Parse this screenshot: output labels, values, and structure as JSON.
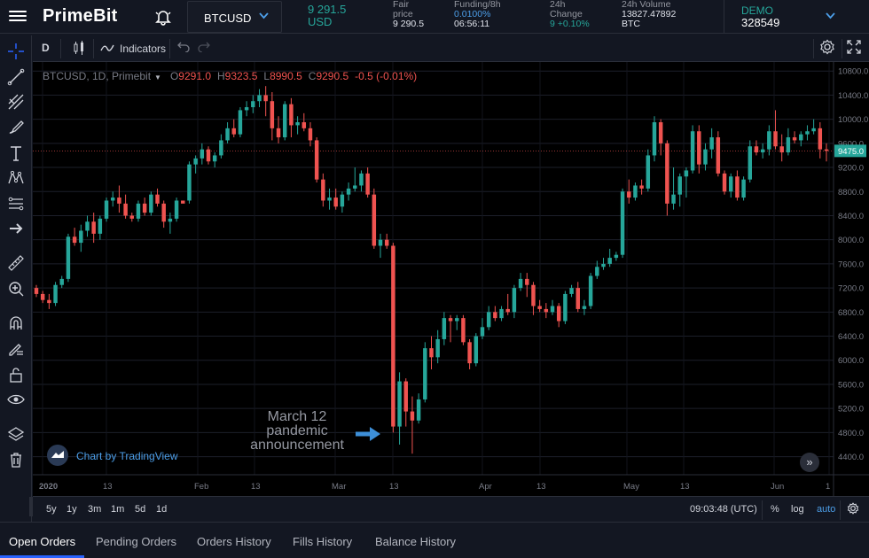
{
  "header": {
    "logo": "PrimeBit",
    "symbol": "BTCUSD",
    "last_price": "9 291.5",
    "last_currency": "USD",
    "fair_price_label_1": "Fair",
    "fair_price_label_2": "price",
    "fair_price_value": "9 290.5",
    "funding_label": "Funding/8h",
    "funding_rate": "0.0100%",
    "funding_countdown": "06:56:11",
    "change_label_1": "24h",
    "change_label_2": "Change",
    "change_value": "9 +0.10%",
    "volume_label": "24h Volume",
    "volume_value": "13827.47892",
    "volume_unit": "BTC",
    "account_mode": "DEMO",
    "account_id": "328549"
  },
  "chart_toolbar": {
    "interval": "D",
    "indicators_label": "Indicators"
  },
  "chart_legend": {
    "title": "BTCUSD, 1D, Primebit",
    "o_label": "O",
    "o_value": "9291.0",
    "h_label": "H",
    "h_value": "9323.5",
    "l_label": "L",
    "l_value": "8990.5",
    "c_label": "C",
    "c_value": "9290.5",
    "change": "-0.5 (-0.01%)"
  },
  "annotation": {
    "line1": "March 12",
    "line2": "pandemic",
    "line3": "announcement"
  },
  "watermark": "Chart by TradingView",
  "price_tag": "9475.0",
  "bottom": {
    "ranges": [
      "5y",
      "1y",
      "3m",
      "1m",
      "5d",
      "1d"
    ],
    "clock": "09:03:48 (UTC)",
    "percent": "%",
    "log": "log",
    "auto": "auto"
  },
  "tabs": [
    "Open Orders",
    "Pending Orders",
    "Orders History",
    "Fills History",
    "Balance History"
  ],
  "colors": {
    "up": "#26a69a",
    "down": "#ef5350",
    "accent": "#2962ff",
    "annotation": "#3d8fd8"
  },
  "chart_data": {
    "type": "candlestick",
    "y_ticks": [
      4400,
      4800,
      5200,
      5600,
      6000,
      6400,
      6800,
      7200,
      7600,
      8000,
      8400,
      8800,
      9200,
      9600,
      10000,
      10400,
      10800
    ],
    "x_ticks": [
      "2020",
      "13",
      "Feb",
      "13",
      "Mar",
      "13",
      "Apr",
      "13",
      "May",
      "13",
      "Jun",
      "1"
    ],
    "ylim": [
      4100,
      10950
    ],
    "candles": [
      [
        7200,
        7250,
        7050,
        7100
      ],
      [
        7100,
        7150,
        6950,
        7000
      ],
      [
        7000,
        7100,
        6850,
        6950
      ],
      [
        6950,
        7300,
        6900,
        7250
      ],
      [
        7250,
        7400,
        7200,
        7350
      ],
      [
        7350,
        8100,
        7300,
        8050
      ],
      [
        8050,
        8200,
        7900,
        7950
      ],
      [
        7950,
        8250,
        7800,
        8150
      ],
      [
        8150,
        8400,
        8050,
        8300
      ],
      [
        8300,
        8450,
        7950,
        8100
      ],
      [
        8100,
        8400,
        8000,
        8350
      ],
      [
        8350,
        8700,
        8300,
        8650
      ],
      [
        8650,
        8800,
        8550,
        8700
      ],
      [
        8700,
        8900,
        8450,
        8600
      ],
      [
        8600,
        8750,
        8350,
        8400
      ],
      [
        8400,
        8450,
        8300,
        8350
      ],
      [
        8350,
        8650,
        8300,
        8600
      ],
      [
        8600,
        8700,
        8400,
        8450
      ],
      [
        8450,
        8800,
        8400,
        8750
      ],
      [
        8750,
        8850,
        8550,
        8600
      ],
      [
        8600,
        8650,
        8200,
        8300
      ],
      [
        8300,
        8450,
        8100,
        8350
      ],
      [
        8350,
        8700,
        8300,
        8650
      ],
      [
        8650,
        8600,
        8600,
        8600
      ],
      [
        8650,
        9300,
        8600,
        9250
      ],
      [
        9250,
        9400,
        9100,
        9350
      ],
      [
        9350,
        9600,
        9250,
        9500
      ],
      [
        9500,
        9550,
        9250,
        9300
      ],
      [
        9300,
        9450,
        9200,
        9400
      ],
      [
        9400,
        9750,
        9350,
        9650
      ],
      [
        9650,
        9950,
        9600,
        9850
      ],
      [
        9850,
        10000,
        9700,
        9750
      ],
      [
        9750,
        10200,
        9700,
        10150
      ],
      [
        10150,
        10300,
        10050,
        10200
      ],
      [
        10200,
        10400,
        10100,
        10300
      ],
      [
        10300,
        10500,
        10200,
        10400
      ],
      [
        10400,
        10550,
        10050,
        10300
      ],
      [
        10300,
        10450,
        9650,
        9850
      ],
      [
        9850,
        10050,
        9600,
        9700
      ],
      [
        9700,
        10300,
        9650,
        10250
      ],
      [
        10250,
        10350,
        9700,
        9900
      ],
      [
        9900,
        10050,
        9750,
        9950
      ],
      [
        9950,
        10100,
        9800,
        9850
      ],
      [
        9850,
        9950,
        9550,
        9650
      ],
      [
        9650,
        9700,
        8950,
        9000
      ],
      [
        9000,
        9100,
        8550,
        8650
      ],
      [
        8650,
        8850,
        8500,
        8700
      ],
      [
        8700,
        8850,
        8500,
        8550
      ],
      [
        8550,
        8800,
        8450,
        8750
      ],
      [
        8750,
        8950,
        8650,
        8850
      ],
      [
        8850,
        9200,
        8800,
        8900
      ],
      [
        8900,
        9150,
        8800,
        9100
      ],
      [
        9100,
        9200,
        8700,
        8750
      ],
      [
        8750,
        8850,
        7850,
        7900
      ],
      [
        7900,
        8100,
        7700,
        8000
      ],
      [
        8000,
        8100,
        7850,
        7900
      ],
      [
        7900,
        7950,
        4800,
        4900
      ],
      [
        4900,
        5800,
        4600,
        5650
      ],
      [
        5650,
        5700,
        4900,
        5150
      ],
      [
        5150,
        5400,
        4450,
        5000
      ],
      [
        5000,
        5450,
        4950,
        5350
      ],
      [
        5350,
        6300,
        5300,
        6200
      ],
      [
        6200,
        6400,
        5850,
        6050
      ],
      [
        6050,
        6500,
        5950,
        6350
      ],
      [
        6350,
        6800,
        6250,
        6700
      ],
      [
        6700,
        6750,
        6300,
        6650
      ],
      [
        6650,
        6750,
        6500,
        6700
      ],
      [
        6700,
        6750,
        6250,
        6300
      ],
      [
        6300,
        6350,
        5850,
        5950
      ],
      [
        5950,
        6450,
        5900,
        6400
      ],
      [
        6400,
        6700,
        6350,
        6550
      ],
      [
        6550,
        6900,
        6500,
        6800
      ],
      [
        6800,
        6900,
        6650,
        6700
      ],
      [
        6700,
        6900,
        6650,
        6850
      ],
      [
        6850,
        7100,
        6750,
        6800
      ],
      [
        6800,
        7250,
        6700,
        7200
      ],
      [
        7200,
        7450,
        7150,
        7350
      ],
      [
        7350,
        7450,
        7050,
        7250
      ],
      [
        7250,
        7300,
        6750,
        6900
      ],
      [
        6900,
        7000,
        6800,
        6850
      ],
      [
        6850,
        6950,
        6700,
        6800
      ],
      [
        6800,
        7000,
        6750,
        6900
      ],
      [
        6900,
        6950,
        6550,
        6650
      ],
      [
        6650,
        7150,
        6600,
        7100
      ],
      [
        7100,
        7250,
        7050,
        7200
      ],
      [
        7200,
        7300,
        6800,
        6850
      ],
      [
        6850,
        7000,
        6750,
        6900
      ],
      [
        6900,
        7450,
        6850,
        7400
      ],
      [
        7400,
        7650,
        7350,
        7550
      ],
      [
        7550,
        7700,
        7500,
        7600
      ],
      [
        7600,
        7850,
        7550,
        7700
      ],
      [
        7700,
        7800,
        7650,
        7750
      ],
      [
        7750,
        8850,
        7700,
        8800
      ],
      [
        8800,
        9000,
        8600,
        8700
      ],
      [
        8700,
        8950,
        8650,
        8900
      ],
      [
        8900,
        9000,
        8750,
        8850
      ],
      [
        8850,
        9500,
        8800,
        9400
      ],
      [
        9400,
        10050,
        9300,
        9950
      ],
      [
        9950,
        10000,
        9400,
        9600
      ],
      [
        9600,
        9650,
        8400,
        8600
      ],
      [
        8600,
        9200,
        8500,
        8750
      ],
      [
        8750,
        9100,
        8550,
        9050
      ],
      [
        9050,
        9200,
        8700,
        9150
      ],
      [
        9150,
        9900,
        9100,
        9800
      ],
      [
        9800,
        9900,
        9100,
        9250
      ],
      [
        9250,
        9600,
        9150,
        9500
      ],
      [
        9500,
        9850,
        9350,
        9700
      ],
      [
        9700,
        9800,
        9050,
        9100
      ],
      [
        9100,
        9150,
        8750,
        8800
      ],
      [
        8800,
        9100,
        8700,
        9050
      ],
      [
        9050,
        9150,
        8650,
        8700
      ],
      [
        8700,
        9050,
        8650,
        9000
      ],
      [
        9000,
        9650,
        8950,
        9550
      ],
      [
        9550,
        9650,
        9400,
        9450
      ],
      [
        9450,
        9600,
        9350,
        9500
      ],
      [
        9500,
        9900,
        9400,
        9800
      ],
      [
        9800,
        10150,
        9500,
        9550
      ],
      [
        9550,
        9750,
        9300,
        9450
      ],
      [
        9450,
        9850,
        9400,
        9700
      ],
      [
        9700,
        9800,
        9600,
        9650
      ],
      [
        9650,
        9800,
        9550,
        9750
      ],
      [
        9750,
        9900,
        9650,
        9800
      ],
      [
        9800,
        10000,
        9750,
        9850
      ],
      [
        9850,
        9950,
        9350,
        9500
      ],
      [
        9500,
        9600,
        9300,
        9475
      ]
    ]
  }
}
